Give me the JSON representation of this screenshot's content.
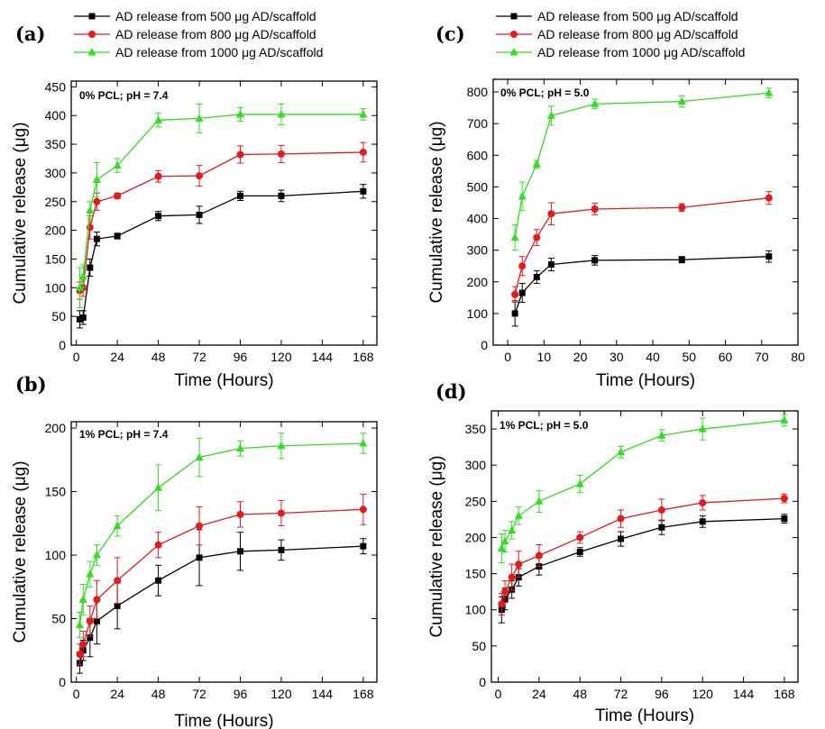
{
  "colors": {
    "s500": "#000000",
    "s800": "#e41a1c",
    "s1000": "#33dd22"
  },
  "chart_data": [
    {
      "type": "line",
      "panel_label": "(a)",
      "annotation": "0% PCL; pH = 7.4",
      "xlabel": "Time (Hours)",
      "ylabel": "Cumulative release (μg)",
      "xlim": [
        -3,
        176
      ],
      "ylim": [
        0,
        460
      ],
      "xticks": [
        0,
        24,
        48,
        72,
        96,
        120,
        144,
        168
      ],
      "yticks": [
        0,
        50,
        100,
        150,
        200,
        250,
        300,
        350,
        400,
        450
      ],
      "legend": [
        "AD release from 500 μg AD/scaffold",
        "AD release from 800 μg AD/scaffold",
        "AD release from 1000 μg AD/scaffold"
      ],
      "legend_position": "top-left",
      "x": [
        2,
        4,
        8,
        12,
        24,
        48,
        72,
        96,
        120,
        168
      ],
      "series": [
        {
          "name": "AD release from 500 μg AD/scaffold",
          "values": [
            45,
            48,
            135,
            185,
            190,
            225,
            227,
            260,
            260,
            268
          ],
          "errors": [
            15,
            12,
            15,
            12,
            5,
            8,
            15,
            8,
            10,
            12
          ]
        },
        {
          "name": "AD release from 800 μg AD/scaffold",
          "values": [
            95,
            100,
            205,
            250,
            260,
            294,
            295,
            332,
            333,
            336
          ],
          "errors": [
            15,
            15,
            20,
            15,
            5,
            10,
            18,
            15,
            15,
            17
          ]
        },
        {
          "name": "AD release from 1000 μg AD/scaffold",
          "values": [
            100,
            120,
            235,
            288,
            313,
            392,
            395,
            402,
            402,
            402
          ],
          "errors": [
            35,
            20,
            15,
            30,
            12,
            12,
            25,
            12,
            18,
            10
          ]
        }
      ]
    },
    {
      "type": "line",
      "panel_label": "(b)",
      "annotation": "1% PCL; pH = 7.4",
      "xlabel": "Time (Hours)",
      "ylabel": "Cumulative release (μg)",
      "xlim": [
        -3,
        176
      ],
      "ylim": [
        0,
        205
      ],
      "xticks": [
        0,
        24,
        48,
        72,
        96,
        120,
        144,
        168
      ],
      "yticks": [
        0,
        50,
        100,
        150,
        200
      ],
      "x": [
        2,
        4,
        8,
        12,
        24,
        48,
        72,
        96,
        120,
        168
      ],
      "series": [
        {
          "name": "AD release from 500 μg AD/scaffold",
          "values": [
            15,
            25,
            35,
            48,
            60,
            80,
            98,
            103,
            104,
            107
          ],
          "errors": [
            8,
            8,
            15,
            18,
            18,
            12,
            22,
            15,
            8,
            6
          ]
        },
        {
          "name": "AD release from 800 μg AD/scaffold",
          "values": [
            22,
            30,
            48,
            65,
            80,
            108,
            123,
            132,
            133,
            136
          ],
          "errors": [
            8,
            10,
            12,
            15,
            18,
            10,
            15,
            10,
            10,
            12
          ]
        },
        {
          "name": "AD release from 1000 μg AD/scaffold",
          "values": [
            45,
            65,
            85,
            100,
            123,
            153,
            177,
            184,
            186,
            188
          ],
          "errors": [
            10,
            12,
            10,
            8,
            8,
            18,
            15,
            6,
            10,
            8
          ]
        }
      ]
    },
    {
      "type": "line",
      "panel_label": "(c)",
      "annotation": "0% PCL; pH = 5.0",
      "xlabel": "Time (Hours)",
      "ylabel": "Cumulative release (μg)",
      "xlim": [
        -4,
        80
      ],
      "ylim": [
        0,
        840
      ],
      "xticks": [
        0,
        10,
        20,
        30,
        40,
        50,
        60,
        70,
        80
      ],
      "yticks": [
        0,
        100,
        200,
        300,
        400,
        500,
        600,
        700,
        800
      ],
      "legend": [
        "AD release from 500 μg AD/scaffold",
        "AD release from 800 μg AD/scaffold",
        "AD release from 1000 μg AD/scaffold"
      ],
      "legend_position": "top-left",
      "x": [
        2,
        4,
        8,
        12,
        24,
        48,
        72
      ],
      "series": [
        {
          "name": "AD release from 500 μg AD/scaffold",
          "values": [
            100,
            165,
            215,
            255,
            268,
            270,
            280
          ],
          "errors": [
            40,
            30,
            20,
            20,
            15,
            10,
            18
          ]
        },
        {
          "name": "AD release from 800 μg AD/scaffold",
          "values": [
            160,
            250,
            340,
            415,
            430,
            435,
            465
          ],
          "errors": [
            25,
            30,
            25,
            35,
            18,
            12,
            20
          ]
        },
        {
          "name": "AD release from 1000 μg AD/scaffold",
          "values": [
            340,
            470,
            572,
            725,
            762,
            770,
            797
          ],
          "errors": [
            40,
            45,
            12,
            30,
            15,
            18,
            15
          ]
        }
      ]
    },
    {
      "type": "line",
      "panel_label": "(d)",
      "annotation": "1% PCL; pH = 5.0",
      "xlabel": "Time (Hours)",
      "ylabel": "Cumulative release (μg)",
      "xlim": [
        -4,
        176
      ],
      "ylim": [
        0,
        375
      ],
      "xticks": [
        0,
        24,
        48,
        72,
        96,
        120,
        144,
        168
      ],
      "yticks": [
        0,
        50,
        100,
        150,
        200,
        250,
        300,
        350
      ],
      "x": [
        2,
        4,
        8,
        12,
        24,
        48,
        72,
        96,
        120,
        168
      ],
      "series": [
        {
          "name": "AD release from 500 μg AD/scaffold",
          "values": [
            100,
            115,
            128,
            145,
            160,
            180,
            198,
            214,
            222,
            226
          ],
          "errors": [
            18,
            15,
            12,
            12,
            12,
            6,
            10,
            10,
            8,
            6
          ]
        },
        {
          "name": "AD release from 800 μg AD/scaffold",
          "values": [
            108,
            125,
            145,
            163,
            175,
            200,
            226,
            238,
            248,
            254
          ],
          "errors": [
            15,
            15,
            18,
            18,
            15,
            8,
            12,
            15,
            10,
            6
          ]
        },
        {
          "name": "AD release from 1000 μg AD/scaffold",
          "values": [
            185,
            195,
            210,
            230,
            250,
            274,
            318,
            341,
            350,
            362
          ],
          "errors": [
            20,
            15,
            12,
            12,
            15,
            12,
            8,
            8,
            15,
            8
          ]
        }
      ]
    }
  ]
}
